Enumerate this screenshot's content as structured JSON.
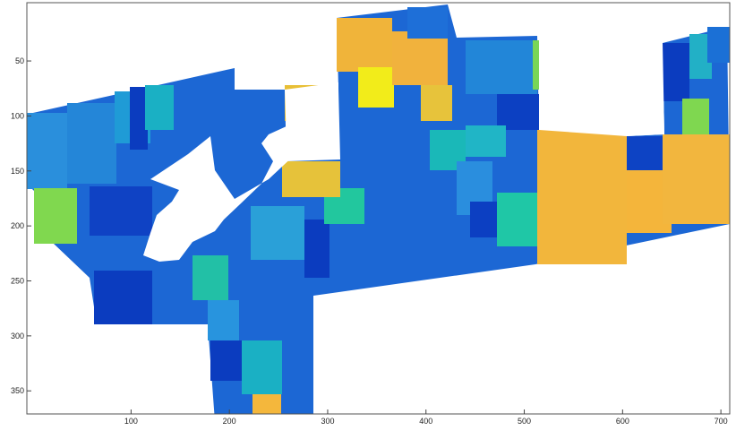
{
  "chart_data": {
    "type": "image",
    "xlim": [
      -6,
      709
    ],
    "ylim": [
      -3,
      371
    ],
    "y_reversed": true,
    "xticks": [
      100,
      200,
      300,
      400,
      500,
      600,
      700
    ],
    "yticks": [
      50,
      100,
      150,
      200,
      250,
      300,
      350
    ]
  }
}
